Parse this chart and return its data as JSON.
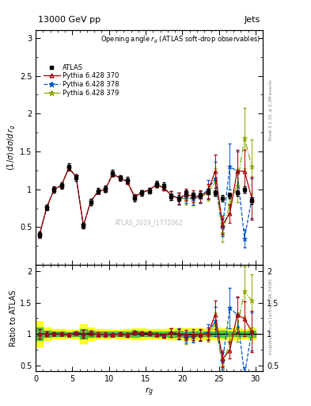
{
  "title_top_left": "13000 GeV pp",
  "title_top_right": "Jets",
  "plot_title": "Opening angle $r_g$ (ATLAS soft-drop observables)",
  "ylabel_main": "$(1/\\sigma)\\,d\\sigma/d\\,r_g$",
  "ylabel_ratio": "Ratio to ATLAS",
  "xlabel": "$r_g$",
  "rivet_label": "Rivet 3.1.10, ≥ 2.3M events",
  "mcplots_label": "mcplots.cern.ch [arXiv:1306.3436]",
  "atlas_id": "ATLAS_2019_I1772062",
  "x": [
    0.5,
    1.5,
    2.5,
    3.5,
    4.5,
    5.5,
    6.5,
    7.5,
    8.5,
    9.5,
    10.5,
    11.5,
    12.5,
    13.5,
    14.5,
    15.5,
    16.5,
    17.5,
    18.5,
    19.5,
    20.5,
    21.5,
    22.5,
    23.5,
    24.5,
    25.5,
    26.5,
    27.5,
    28.5,
    29.5
  ],
  "atlas_y": [
    0.4,
    0.76,
    1.0,
    1.05,
    1.3,
    1.15,
    0.52,
    0.83,
    0.98,
    1.01,
    1.22,
    1.15,
    1.12,
    0.88,
    0.95,
    0.98,
    1.07,
    1.05,
    0.9,
    0.88,
    0.95,
    0.92,
    0.92,
    0.97,
    0.95,
    0.88,
    0.92,
    0.95,
    1.0,
    0.85
  ],
  "atlas_yerr": [
    0.04,
    0.04,
    0.04,
    0.04,
    0.04,
    0.04,
    0.04,
    0.04,
    0.04,
    0.04,
    0.04,
    0.04,
    0.04,
    0.04,
    0.04,
    0.04,
    0.04,
    0.04,
    0.04,
    0.04,
    0.04,
    0.04,
    0.04,
    0.04,
    0.04,
    0.04,
    0.04,
    0.04,
    0.04,
    0.04
  ],
  "p370_y": [
    0.4,
    0.76,
    1.0,
    1.05,
    1.28,
    1.17,
    0.52,
    0.84,
    0.97,
    1.0,
    1.2,
    1.15,
    1.1,
    0.9,
    0.96,
    0.99,
    1.06,
    1.02,
    0.92,
    0.88,
    0.93,
    0.91,
    0.91,
    0.97,
    1.24,
    0.53,
    0.68,
    1.24,
    1.24,
    0.88
  ],
  "p370_yerr": [
    0.03,
    0.03,
    0.03,
    0.03,
    0.03,
    0.03,
    0.03,
    0.03,
    0.03,
    0.03,
    0.03,
    0.03,
    0.03,
    0.03,
    0.03,
    0.03,
    0.03,
    0.03,
    0.06,
    0.07,
    0.08,
    0.08,
    0.08,
    0.1,
    0.22,
    0.12,
    0.12,
    0.28,
    0.28,
    0.28
  ],
  "p378_y": [
    0.4,
    0.76,
    1.0,
    1.05,
    1.28,
    1.17,
    0.52,
    0.84,
    0.97,
    1.0,
    1.2,
    1.15,
    1.1,
    0.9,
    0.96,
    0.99,
    1.06,
    1.02,
    0.92,
    0.88,
    0.9,
    0.88,
    0.9,
    1.0,
    1.14,
    0.5,
    1.3,
    1.24,
    0.35,
    0.88
  ],
  "p378_yerr": [
    0.03,
    0.03,
    0.03,
    0.03,
    0.03,
    0.03,
    0.03,
    0.03,
    0.03,
    0.03,
    0.03,
    0.03,
    0.03,
    0.03,
    0.03,
    0.03,
    0.03,
    0.03,
    0.06,
    0.08,
    0.08,
    0.08,
    0.08,
    0.12,
    0.22,
    0.12,
    0.3,
    0.26,
    0.12,
    0.26
  ],
  "p379_y": [
    0.4,
    0.76,
    1.0,
    1.05,
    1.28,
    1.17,
    0.52,
    0.84,
    0.97,
    1.0,
    1.2,
    1.15,
    1.1,
    0.9,
    0.96,
    0.99,
    1.06,
    1.02,
    0.92,
    0.88,
    0.88,
    0.87,
    0.9,
    0.95,
    1.1,
    0.42,
    0.8,
    1.05,
    1.68,
    1.3
  ],
  "p379_yerr": [
    0.03,
    0.03,
    0.03,
    0.03,
    0.03,
    0.03,
    0.03,
    0.03,
    0.03,
    0.03,
    0.03,
    0.03,
    0.03,
    0.03,
    0.03,
    0.03,
    0.03,
    0.03,
    0.06,
    0.08,
    0.08,
    0.08,
    0.08,
    0.1,
    0.18,
    0.12,
    0.12,
    0.22,
    0.4,
    0.36
  ],
  "main_ylim": [
    0.0,
    3.1
  ],
  "ratio_ylim": [
    0.4,
    2.1
  ],
  "xlim": [
    0,
    31
  ],
  "xticks": [
    0,
    5,
    10,
    15,
    20,
    25,
    30
  ],
  "main_yticks": [
    0.5,
    1.0,
    1.5,
    2.0,
    2.5,
    3.0
  ],
  "ratio_yticks": [
    0.5,
    1.0,
    1.5,
    2.0
  ],
  "color_atlas": "#000000",
  "color_p370": "#aa0000",
  "color_p378": "#0055cc",
  "color_p379": "#88aa00",
  "band_yellow": "#ffff00",
  "band_green": "#44bb44"
}
